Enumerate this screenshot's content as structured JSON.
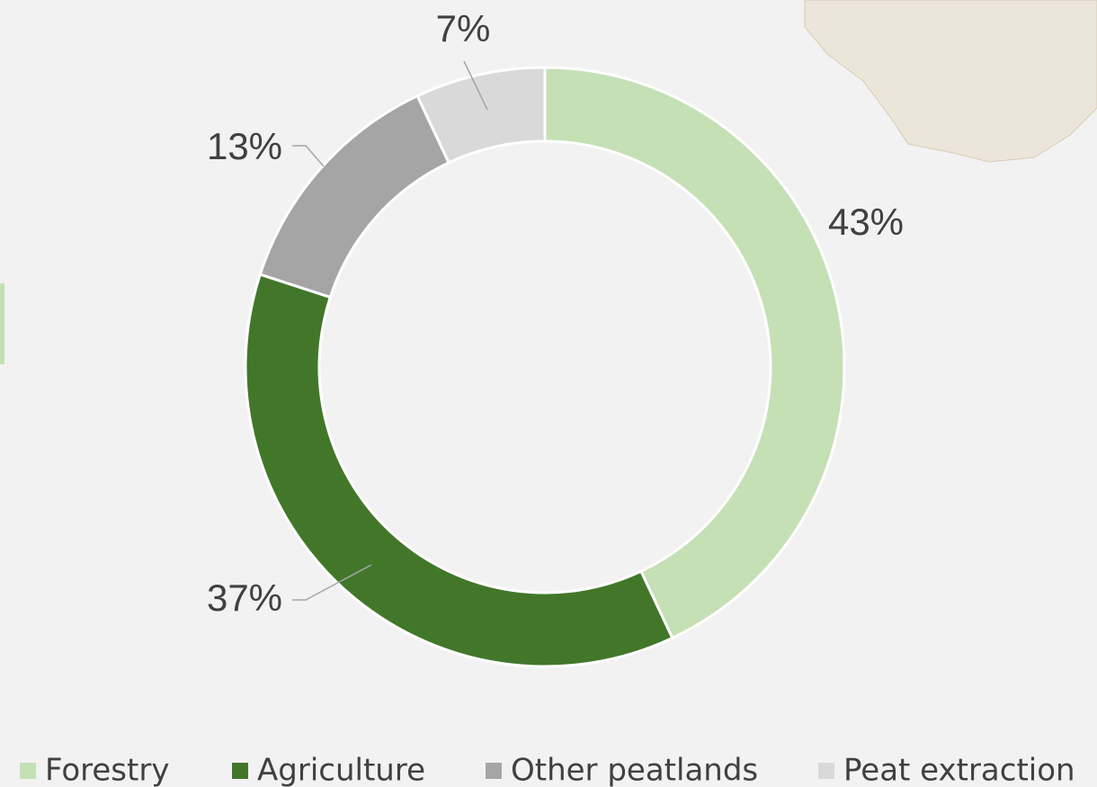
{
  "chart_data": {
    "type": "pie",
    "categories": [
      "Forestry",
      "Agriculture",
      "Other peatlands",
      "Peat extraction"
    ],
    "values": [
      43,
      37,
      13,
      7
    ],
    "value_labels": [
      "43%",
      "37%",
      "13%",
      "7%"
    ],
    "colors": [
      "#c5e0b4",
      "#42772a",
      "#a5a5a5",
      "#d9d9d9"
    ],
    "donut": true,
    "legend": "bottom"
  }
}
